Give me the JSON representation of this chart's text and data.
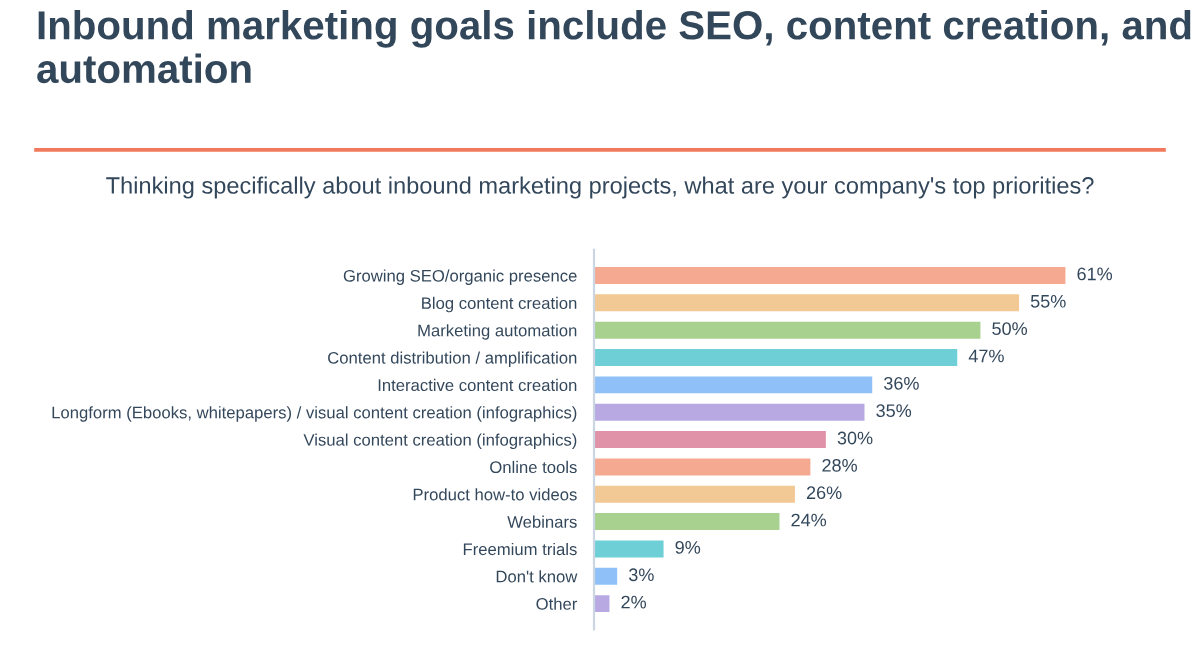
{
  "chart_data": {
    "type": "bar",
    "orientation": "horizontal",
    "title": "Inbound marketing goals include SEO, content creation, and automation",
    "subtitle": "Thinking specifically about inbound marketing projects, what are your company's top priorities?",
    "categories": [
      "Growing SEO/organic presence",
      "Blog content creation",
      "Marketing automation",
      "Content distribution / amplification",
      "Interactive content creation",
      "Longform (Ebooks, whitepapers) / visual content creation (infographics)",
      "Visual content creation (infographics)",
      "Online tools",
      "Product how-to videos",
      "Webinars",
      "Freemium trials",
      "Don't know",
      "Other"
    ],
    "values": [
      61,
      55,
      50,
      47,
      36,
      35,
      30,
      28,
      26,
      24,
      9,
      3,
      2
    ],
    "value_labels": [
      "61%",
      "55%",
      "50%",
      "47%",
      "36%",
      "35%",
      "30%",
      "28%",
      "26%",
      "24%",
      "9%",
      "3%",
      "2%"
    ],
    "colors": [
      "#f4a990",
      "#f2c995",
      "#a8d08f",
      "#6ecfd6",
      "#8fc0f7",
      "#b8a9e3",
      "#e092a9",
      "#f4a990",
      "#f2c995",
      "#a8d08f",
      "#6ecfd6",
      "#8fc0f7",
      "#b8a9e3"
    ],
    "tick_labels": "y",
    "grid": false,
    "legend": false
  }
}
